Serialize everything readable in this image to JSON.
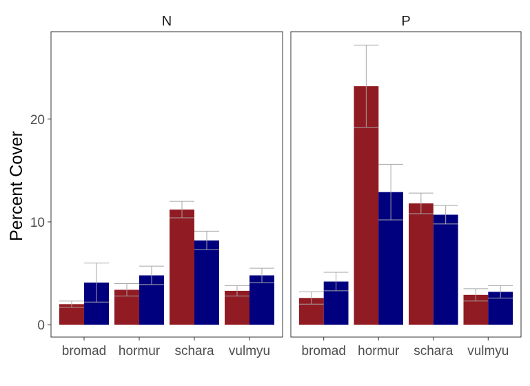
{
  "chart_data": {
    "type": "bar",
    "ylabel": "Percent Cover",
    "xlabel": "",
    "ylim": [
      -1.2,
      28.5
    ],
    "yticks": [
      0,
      10,
      20
    ],
    "grid": false,
    "colors": [
      "#911b22",
      "#00007f"
    ],
    "categories": [
      "bromad",
      "hormur",
      "schara",
      "vulmyu"
    ],
    "panels": [
      {
        "facet": "N",
        "series": [
          {
            "values": [
              2.0,
              3.4,
              11.2,
              3.3
            ],
            "error": [
              0.3,
              0.6,
              0.8,
              0.5
            ]
          },
          {
            "values": [
              4.1,
              4.8,
              8.2,
              4.8
            ],
            "error": [
              1.9,
              0.9,
              0.9,
              0.7
            ]
          }
        ]
      },
      {
        "facet": "P",
        "series": [
          {
            "values": [
              2.6,
              23.2,
              11.8,
              2.9
            ],
            "error": [
              0.6,
              4.0,
              1.0,
              0.6
            ]
          },
          {
            "values": [
              4.2,
              12.9,
              10.7,
              3.2
            ],
            "error": [
              0.9,
              2.7,
              0.9,
              0.6
            ]
          }
        ]
      }
    ]
  }
}
